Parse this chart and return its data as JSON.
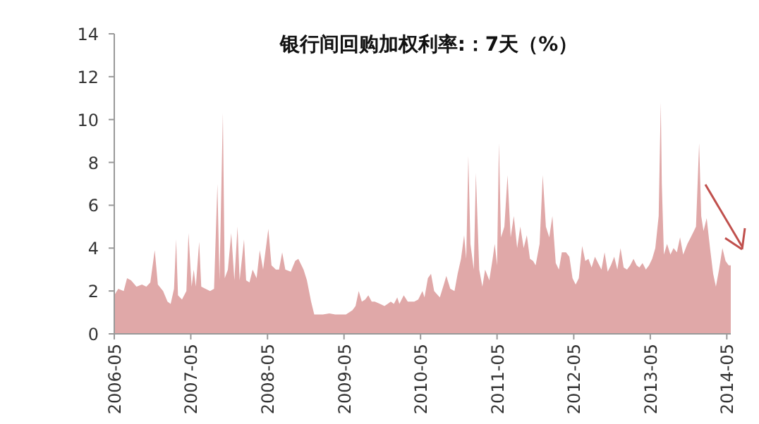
{
  "chart_data": {
    "type": "area",
    "title": "银行间回购加权利率:：7天（%）",
    "color": "#e0a8a8",
    "grid": false,
    "x": [
      "2006-05-01",
      "2006-05-20",
      "2006-06-15",
      "2006-07-01",
      "2006-07-20",
      "2006-08-15",
      "2006-09-10",
      "2006-10-01",
      "2006-10-20",
      "2006-11-10",
      "2006-11-25",
      "2006-12-20",
      "2007-01-10",
      "2007-01-25",
      "2007-02-10",
      "2007-02-20",
      "2007-03-01",
      "2007-03-20",
      "2007-04-10",
      "2007-04-20",
      "2007-05-05",
      "2007-05-15",
      "2007-05-25",
      "2007-06-10",
      "2007-06-20",
      "2007-07-10",
      "2007-08-01",
      "2007-08-20",
      "2007-09-05",
      "2007-09-15",
      "2007-10-01",
      "2007-10-10",
      "2007-10-25",
      "2007-11-10",
      "2007-11-25",
      "2007-12-10",
      "2007-12-20",
      "2008-01-10",
      "2008-01-20",
      "2008-02-05",
      "2008-02-20",
      "2008-03-10",
      "2008-03-25",
      "2008-04-10",
      "2008-05-05",
      "2008-05-20",
      "2008-06-10",
      "2008-06-25",
      "2008-07-10",
      "2008-07-25",
      "2008-08-20",
      "2008-09-10",
      "2008-09-25",
      "2008-10-20",
      "2008-11-05",
      "2008-11-25",
      "2008-12-10",
      "2009-01-20",
      "2009-02-20",
      "2009-03-20",
      "2009-04-20",
      "2009-05-10",
      "2009-06-10",
      "2009-06-25",
      "2009-07-10",
      "2009-07-25",
      "2009-08-10",
      "2009-08-25",
      "2009-09-10",
      "2009-09-25",
      "2009-10-20",
      "2009-11-10",
      "2009-11-25",
      "2009-12-10",
      "2009-12-25",
      "2010-01-10",
      "2010-01-20",
      "2010-02-10",
      "2010-03-01",
      "2010-04-01",
      "2010-04-20",
      "2010-05-10",
      "2010-05-20",
      "2010-06-05",
      "2010-06-20",
      "2010-07-05",
      "2010-08-01",
      "2010-08-20",
      "2010-09-01",
      "2010-09-20",
      "2010-10-10",
      "2010-10-25",
      "2010-11-10",
      "2010-11-25",
      "2010-12-05",
      "2010-12-15",
      "2010-12-25",
      "2011-01-10",
      "2011-01-20",
      "2011-02-05",
      "2011-02-20",
      "2011-03-05",
      "2011-03-25",
      "2011-04-10",
      "2011-04-20",
      "2011-05-01",
      "2011-05-10",
      "2011-05-20",
      "2011-06-05",
      "2011-06-20",
      "2011-07-05",
      "2011-07-20",
      "2011-08-05",
      "2011-08-20",
      "2011-09-05",
      "2011-09-20",
      "2011-10-05",
      "2011-10-20",
      "2011-11-01",
      "2011-11-20",
      "2011-12-05",
      "2011-12-20",
      "2012-01-05",
      "2012-01-20",
      "2012-02-05",
      "2012-02-20",
      "2012-03-05",
      "2012-03-25",
      "2012-04-10",
      "2012-04-25",
      "2012-05-10",
      "2012-05-25",
      "2012-06-10",
      "2012-06-25",
      "2012-07-10",
      "2012-07-25",
      "2012-08-10",
      "2012-08-25",
      "2012-09-10",
      "2012-09-25",
      "2012-10-10",
      "2012-10-25",
      "2012-11-10",
      "2012-11-25",
      "2012-12-10",
      "2012-12-25",
      "2013-01-10",
      "2013-01-25",
      "2013-02-10",
      "2013-02-25",
      "2013-03-10",
      "2013-03-25",
      "2013-04-10",
      "2013-04-25",
      "2013-05-10",
      "2013-05-25",
      "2013-06-10",
      "2013-06-20",
      "2013-06-25",
      "2013-07-05",
      "2013-07-20",
      "2013-08-05",
      "2013-08-20",
      "2013-09-05",
      "2013-09-20",
      "2013-10-05",
      "2013-10-25",
      "2013-11-10",
      "2013-11-25",
      "2013-12-05",
      "2013-12-20",
      "2013-12-30",
      "2014-01-10",
      "2014-01-25",
      "2014-02-10",
      "2014-02-25",
      "2014-03-10",
      "2014-03-25",
      "2014-04-10",
      "2014-04-25",
      "2014-05-10",
      "2014-05-20"
    ],
    "values": [
      1.8,
      2.1,
      2.0,
      2.6,
      2.5,
      2.2,
      2.3,
      2.2,
      2.4,
      3.9,
      2.3,
      2.0,
      1.5,
      1.4,
      2.1,
      4.4,
      1.8,
      1.6,
      2.0,
      4.7,
      2.2,
      3.0,
      2.2,
      4.3,
      2.2,
      2.1,
      2.0,
      2.1,
      7.0,
      2.5,
      10.3,
      2.6,
      3.0,
      4.7,
      2.5,
      5.0,
      2.5,
      4.4,
      2.5,
      2.4,
      3.0,
      2.6,
      3.9,
      3.0,
      4.9,
      3.2,
      3.0,
      3.0,
      3.8,
      3.0,
      2.9,
      3.4,
      3.5,
      3.0,
      2.5,
      1.5,
      0.9,
      0.9,
      0.95,
      0.9,
      0.9,
      0.9,
      1.1,
      1.3,
      2.0,
      1.5,
      1.6,
      1.8,
      1.5,
      1.5,
      1.4,
      1.3,
      1.4,
      1.5,
      1.4,
      1.7,
      1.4,
      1.8,
      1.5,
      1.5,
      1.6,
      2.0,
      1.7,
      2.6,
      2.8,
      2.0,
      1.7,
      2.3,
      2.7,
      2.1,
      2.0,
      2.8,
      3.5,
      4.6,
      3.5,
      8.3,
      4.2,
      3.0,
      7.5,
      3.0,
      2.2,
      3.0,
      2.5,
      3.5,
      4.2,
      3.2,
      8.9,
      4.5,
      5.0,
      7.4,
      4.5,
      5.5,
      4.0,
      5.0,
      4.0,
      4.6,
      3.5,
      3.4,
      3.2,
      4.2,
      7.4,
      5.0,
      4.5,
      5.5,
      3.3,
      3.0,
      3.8,
      3.8,
      3.6,
      2.6,
      2.3,
      2.6,
      4.1,
      3.4,
      3.5,
      3.1,
      3.6,
      3.3,
      3.0,
      3.8,
      2.9,
      3.2,
      3.6,
      3.0,
      4.0,
      3.1,
      3.0,
      3.2,
      3.5,
      3.2,
      3.1,
      3.3,
      3.0,
      3.2,
      3.5,
      4.0,
      5.5,
      10.8,
      7.0,
      3.7,
      4.2,
      3.7,
      4.0,
      3.8,
      4.5,
      3.7,
      4.2,
      4.5,
      4.8,
      5.0,
      8.9,
      5.5,
      4.8,
      5.4,
      4.0,
      2.8,
      2.2,
      3.0,
      4.0,
      3.4,
      3.2,
      3.2
    ],
    "xlim": [
      "2006-05-01",
      "2014-05-20"
    ],
    "xticks": [
      "2006-05",
      "2007-05",
      "2008-05",
      "2009-05",
      "2010-05",
      "2011-05",
      "2012-05",
      "2013-05",
      "2014-05"
    ],
    "ylim": [
      0,
      14
    ],
    "yticks": [
      0,
      2,
      4,
      6,
      8,
      10,
      12,
      14
    ]
  }
}
